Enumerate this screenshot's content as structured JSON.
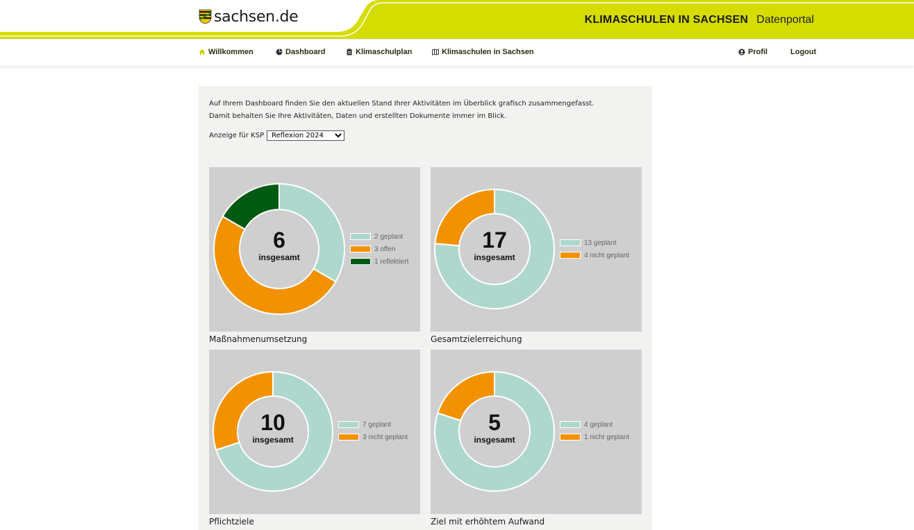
{
  "header": {
    "logo_text": "sachsen.de",
    "portal_name": "KLIMASCHULEN IN SACHSEN",
    "portal_sub": "Datenportal"
  },
  "nav": {
    "left": [
      {
        "label": "Willkommen",
        "icon": "home-icon"
      },
      {
        "label": "Dashboard",
        "icon": "pie-chart-icon"
      },
      {
        "label": "Klimaschulplan",
        "icon": "clipboard-icon"
      },
      {
        "label": "Klimaschulen in Sachsen",
        "icon": "map-icon"
      }
    ],
    "right": [
      {
        "label": "Profil",
        "icon": "user-icon"
      },
      {
        "label": "Logout"
      }
    ]
  },
  "intro": {
    "line1": "Auf Ihrem Dashboard finden Sie den aktuellen Stand Ihrer Aktivitäten im Überblick grafisch zusammengefasst.",
    "line2": "Damit behalten Sie Ihre Aktivitäten, Daten und erstellten Dokumente immer im Blick."
  },
  "filter": {
    "label": "Anzeige für KSP",
    "selected": "Reflexion 2024"
  },
  "colors": {
    "accent": "#d4dc00",
    "geplant": "#aed8cd",
    "offen": "#f39200",
    "reflektiert": "#005a12",
    "card_bg": "#cfcfcf",
    "panel_bg": "#f2f2f0"
  },
  "chart_data": [
    {
      "type": "pie",
      "title": "Maßnahmenumsetzung",
      "total": "6",
      "total_label": "insgesamt",
      "slices": [
        {
          "label": "2 geplant",
          "value": 2,
          "color": "#aed8cd"
        },
        {
          "label": "3 offen",
          "value": 3,
          "color": "#f39200"
        },
        {
          "label": "1 reflektiert",
          "value": 1,
          "color": "#005a12"
        }
      ]
    },
    {
      "type": "pie",
      "title": "Gesamtzielerreichung",
      "total": "17",
      "total_label": "insgesamt",
      "slices": [
        {
          "label": "13 geplant",
          "value": 13,
          "color": "#aed8cd"
        },
        {
          "label": "4 nicht geplant",
          "value": 4,
          "color": "#f39200"
        }
      ]
    },
    {
      "type": "pie",
      "title": "Pflichtziele",
      "total": "10",
      "total_label": "insgesamt",
      "slices": [
        {
          "label": "7 geplant",
          "value": 7,
          "color": "#aed8cd"
        },
        {
          "label": "3 nicht geplant",
          "value": 3,
          "color": "#f39200"
        }
      ]
    },
    {
      "type": "pie",
      "title": "Ziel mit erhöhtem Aufwand",
      "total": "5",
      "total_label": "insgesamt",
      "slices": [
        {
          "label": "4 geplant",
          "value": 4,
          "color": "#aed8cd"
        },
        {
          "label": "1 nicht geplant",
          "value": 1,
          "color": "#f39200"
        }
      ]
    }
  ]
}
